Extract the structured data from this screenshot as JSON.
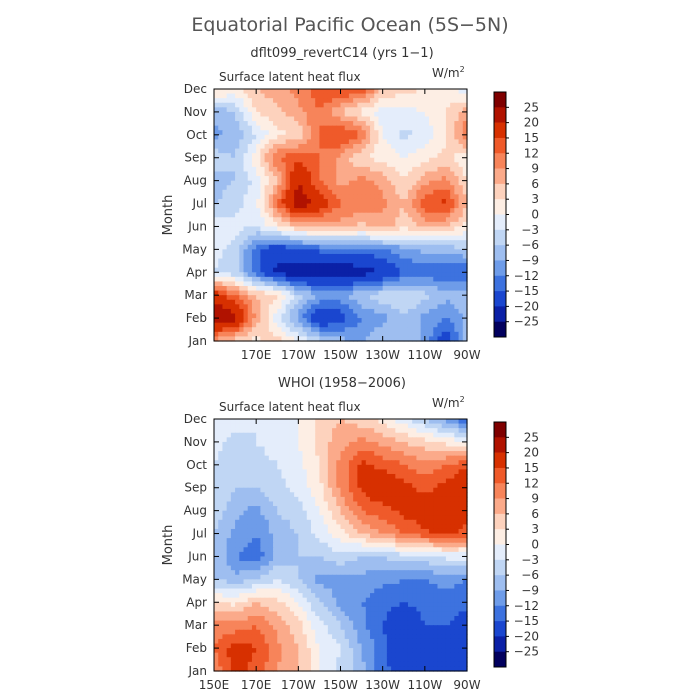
{
  "title": "Equatorial Pacific Ocean (5S−5N)",
  "colorbar": {
    "labels": [
      "25",
      "20",
      "15",
      "12",
      "9",
      "6",
      "3",
      "0",
      "−3",
      "−6",
      "−9",
      "−12",
      "−15",
      "−20",
      "−25"
    ],
    "colors": [
      "#7f0000",
      "#b01200",
      "#d73000",
      "#ef5a2a",
      "#f7845a",
      "#fbaa8a",
      "#fdd2bd",
      "#fdeee4",
      "#e4edfb",
      "#c0d6f4",
      "#9ebef0",
      "#6e9ce9",
      "#3d72df",
      "#1a46cf",
      "#0b20a6",
      "#02005e"
    ]
  },
  "chart_data": [
    {
      "type": "heatmap",
      "name": "model",
      "subtitle": "dflt099_revertC14 (yrs 1−1)",
      "left_label": "Surface latent heat flux",
      "unit": "W/m",
      "unit_sup": "2",
      "ylabel": "Month",
      "y_ticks": [
        "Jan",
        "Feb",
        "Mar",
        "Apr",
        "May",
        "Jun",
        "Jul",
        "Aug",
        "Sep",
        "Oct",
        "Nov",
        "Dec"
      ],
      "x_ticks": [
        "170E",
        "170W",
        "150W",
        "130W",
        "110W",
        "90W"
      ],
      "x_range": [
        "150E",
        "90W"
      ],
      "months": [
        "Jan",
        "Feb",
        "Mar",
        "Apr",
        "May",
        "Jun",
        "Jul",
        "Aug",
        "Sep",
        "Oct",
        "Nov",
        "Dec"
      ],
      "longitudes": [
        "150E",
        "160E",
        "170E",
        "180",
        "170W",
        "160W",
        "150W",
        "140W",
        "130W",
        "120W",
        "110W",
        "100W",
        "90W"
      ],
      "values": [
        [
          8,
          4,
          2,
          5,
          0,
          -5,
          -8,
          -9,
          -6,
          -6,
          -10,
          -18,
          -8
        ],
        [
          25,
          22,
          8,
          -2,
          -10,
          -20,
          -17,
          -12,
          -10,
          -6,
          -10,
          -12,
          -8
        ],
        [
          18,
          12,
          6,
          4,
          -5,
          -9,
          -10,
          -6,
          -4,
          -3,
          -5,
          -8,
          -8
        ],
        [
          -3,
          -5,
          -14,
          -21,
          -24,
          -23,
          -24,
          -22,
          -20,
          -15,
          -14,
          -15,
          -15
        ],
        [
          -2,
          -4,
          -14,
          -18,
          -16,
          -14,
          -14,
          -13,
          -12,
          -10,
          -8,
          -8,
          -6
        ],
        [
          -1,
          -2,
          -3,
          2,
          6,
          7,
          8,
          5,
          8,
          4,
          7,
          6,
          2
        ],
        [
          -6,
          -4,
          -1,
          12,
          24,
          18,
          12,
          12,
          10,
          6,
          14,
          16,
          6
        ],
        [
          -8,
          -6,
          -2,
          6,
          20,
          12,
          8,
          10,
          8,
          3,
          8,
          10,
          3
        ],
        [
          -4,
          -6,
          2,
          12,
          14,
          12,
          8,
          3,
          2,
          0,
          2,
          4,
          1
        ],
        [
          -10,
          -8,
          -3,
          2,
          4,
          12,
          16,
          12,
          0,
          -4,
          -2,
          2,
          12
        ],
        [
          -8,
          -6,
          3,
          5,
          8,
          12,
          6,
          2,
          -2,
          -1,
          0,
          3,
          8
        ],
        [
          4,
          2,
          6,
          8,
          10,
          14,
          16,
          14,
          6,
          4,
          3,
          1,
          -2
        ]
      ]
    },
    {
      "type": "heatmap",
      "name": "observed",
      "subtitle": "WHOI (1958−2006)",
      "left_label": "Surface latent heat flux",
      "unit": "W/m",
      "unit_sup": "2",
      "ylabel": "Month",
      "y_ticks": [
        "Jan",
        "Feb",
        "Mar",
        "Apr",
        "May",
        "Jun",
        "Jul",
        "Aug",
        "Sep",
        "Oct",
        "Nov",
        "Dec"
      ],
      "x_ticks": [
        "150E",
        "170E",
        "170W",
        "150W",
        "130W",
        "110W",
        "90W"
      ],
      "x_range": [
        "150E",
        "90W"
      ],
      "months": [
        "Jan",
        "Feb",
        "Mar",
        "Apr",
        "May",
        "Jun",
        "Jul",
        "Aug",
        "Sep",
        "Oct",
        "Nov",
        "Dec"
      ],
      "longitudes": [
        "150E",
        "160E",
        "170E",
        "180",
        "170W",
        "160W",
        "150W",
        "140W",
        "130W",
        "120W",
        "110W",
        "100W",
        "90W"
      ],
      "values": [
        [
          10,
          16,
          14,
          9,
          6,
          0,
          -4,
          -8,
          -14,
          -17,
          -16,
          -18,
          -20
        ],
        [
          12,
          17,
          15,
          10,
          6,
          0,
          -3,
          -9,
          -14,
          -19,
          -16,
          -17,
          -19
        ],
        [
          10,
          10,
          12,
          8,
          4,
          -2,
          -6,
          -11,
          -15,
          -18,
          -15,
          -15,
          -17
        ],
        [
          4,
          2,
          6,
          4,
          0,
          -6,
          -10,
          -12,
          -14,
          -15,
          -14,
          -13,
          -14
        ],
        [
          -6,
          -8,
          -6,
          -3,
          -6,
          -10,
          -10,
          -10,
          -11,
          -12,
          -12,
          -11,
          -12
        ],
        [
          -6,
          -12,
          -14,
          -8,
          -6,
          -6,
          -4,
          -6,
          -6,
          -4,
          -4,
          -2,
          -2
        ],
        [
          -6,
          -10,
          -12,
          -8,
          -6,
          -2,
          2,
          6,
          9,
          12,
          14,
          16,
          14
        ],
        [
          -4,
          -8,
          -10,
          -6,
          -4,
          0,
          6,
          12,
          14,
          16,
          18,
          20,
          16
        ],
        [
          -3,
          -6,
          -6,
          -4,
          -2,
          2,
          10,
          16,
          18,
          16,
          14,
          16,
          20
        ],
        [
          -3,
          -5,
          -4,
          -3,
          -1,
          3,
          10,
          16,
          14,
          12,
          10,
          12,
          14
        ],
        [
          -2,
          -4,
          -3,
          -2,
          0,
          4,
          8,
          10,
          8,
          6,
          4,
          2,
          0
        ],
        [
          -1,
          -2,
          -3,
          -3,
          0,
          4,
          6,
          4,
          2,
          -2,
          -6,
          -10,
          -16
        ]
      ]
    }
  ]
}
